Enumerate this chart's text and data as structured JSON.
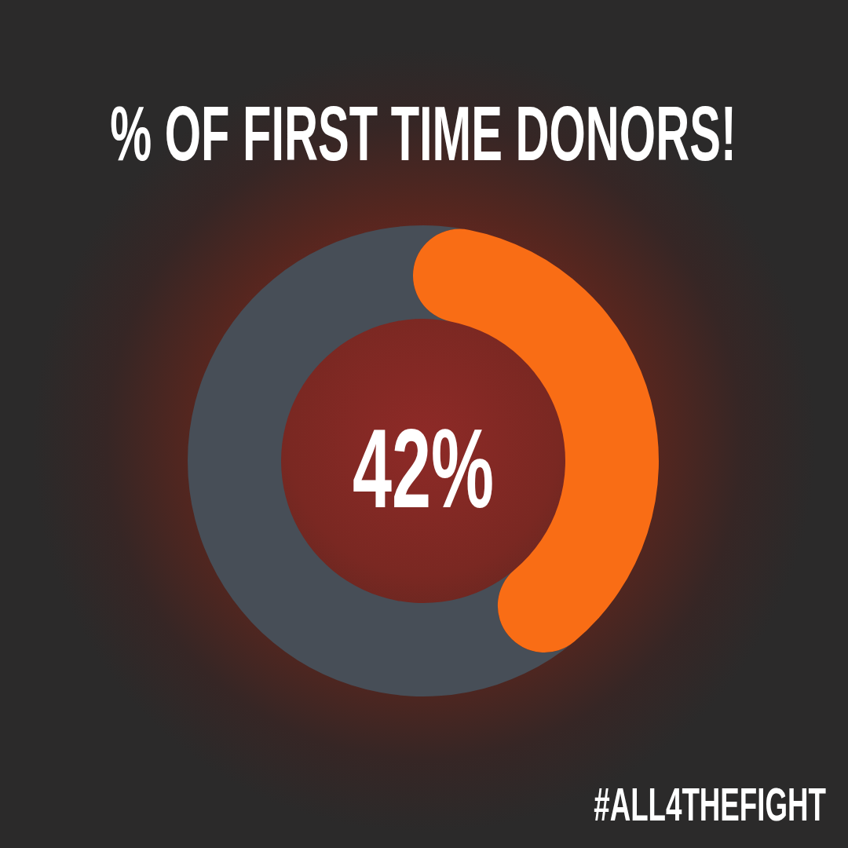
{
  "chart_data": {
    "type": "donut",
    "title": "% OF FIRST TIME DONORS!",
    "categories": [
      null,
      null
    ],
    "values": [
      58,
      42
    ],
    "colors": [
      "#474e57",
      "#f96d15"
    ],
    "annotations": [
      "42%",
      "#ALL4THEFIGHT"
    ]
  }
}
